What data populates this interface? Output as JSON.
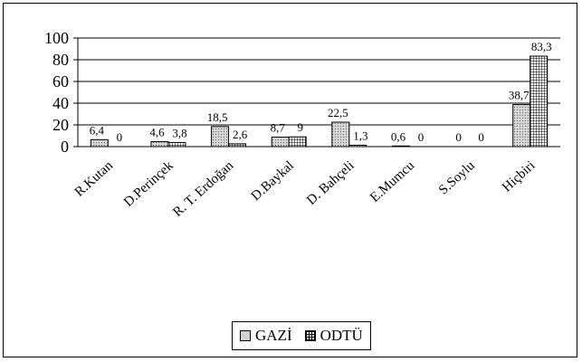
{
  "chart_data": {
    "type": "bar",
    "categories": [
      "R.Kutan",
      "D.Perinçek",
      "R. T. Erdoğan",
      "D.Baykal",
      "D. Bahçeli",
      "E.Mumcu",
      "S.Soylu",
      "Hiçbiri"
    ],
    "series": [
      {
        "name": "GAZİ",
        "values": [
          6.4,
          4.6,
          18.5,
          8.7,
          22.5,
          0.6,
          0,
          38.7
        ],
        "labels": [
          "6,4",
          "4,6",
          "18,5",
          "8,7",
          "22,5",
          "0,6",
          "0",
          "38,7"
        ],
        "color": "#c8c8c8",
        "pattern": "dots"
      },
      {
        "name": "ODTÜ",
        "values": [
          0,
          3.8,
          2.6,
          9,
          1.3,
          0,
          0,
          83.3
        ],
        "labels": [
          "0",
          "3,8",
          "2,6",
          "9",
          "1,3",
          "0",
          "0",
          "83,3"
        ],
        "color": "#ffffff",
        "pattern": "grid"
      }
    ],
    "yticks": [
      "0",
      "20",
      "40",
      "60",
      "80",
      "100"
    ],
    "ylim": [
      0,
      100
    ],
    "grid": true,
    "legend": "bottom"
  },
  "legend": {
    "gazi_label": "GAZİ",
    "odtu_label": "ODTÜ"
  }
}
